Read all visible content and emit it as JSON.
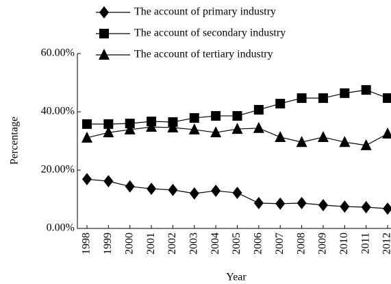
{
  "chart_data": {
    "type": "line",
    "xlabel": "Year",
    "ylabel": "Percentage",
    "categories": [
      "1998",
      "1999",
      "2000",
      "2001",
      "2002",
      "2003",
      "2004",
      "2005",
      "2006",
      "2007",
      "2008",
      "2009",
      "2010",
      "2011",
      "2012"
    ],
    "series": [
      {
        "name": "The account of primary industry",
        "color": "#000000",
        "marker": "diamond",
        "values": [
          16.9,
          16.2,
          14.4,
          13.6,
          13.2,
          12.0,
          12.9,
          12.2,
          8.7,
          8.5,
          8.7,
          8.0,
          7.5,
          7.3,
          6.8
        ]
      },
      {
        "name": "The account of secondary industry",
        "color": "#000000",
        "marker": "square",
        "values": [
          35.8,
          35.8,
          36.0,
          36.7,
          36.5,
          37.9,
          38.6,
          38.6,
          40.7,
          42.8,
          44.7,
          44.7,
          46.4,
          47.5,
          44.7
        ]
      },
      {
        "name": "The account of tertiary industry",
        "color": "#000000",
        "marker": "triangle",
        "values": [
          31.1,
          32.9,
          33.9,
          34.8,
          34.6,
          33.9,
          32.9,
          34.1,
          34.4,
          31.3,
          29.6,
          31.3,
          29.6,
          28.5,
          32.5
        ]
      }
    ],
    "ylim": [
      0,
      60
    ],
    "yticks": [
      {
        "value": 0,
        "label": "0.00%"
      },
      {
        "value": 20,
        "label": "20.00%"
      },
      {
        "value": 40,
        "label": "40.00%"
      },
      {
        "value": 60,
        "label": "60.00%"
      }
    ],
    "grid": false
  }
}
